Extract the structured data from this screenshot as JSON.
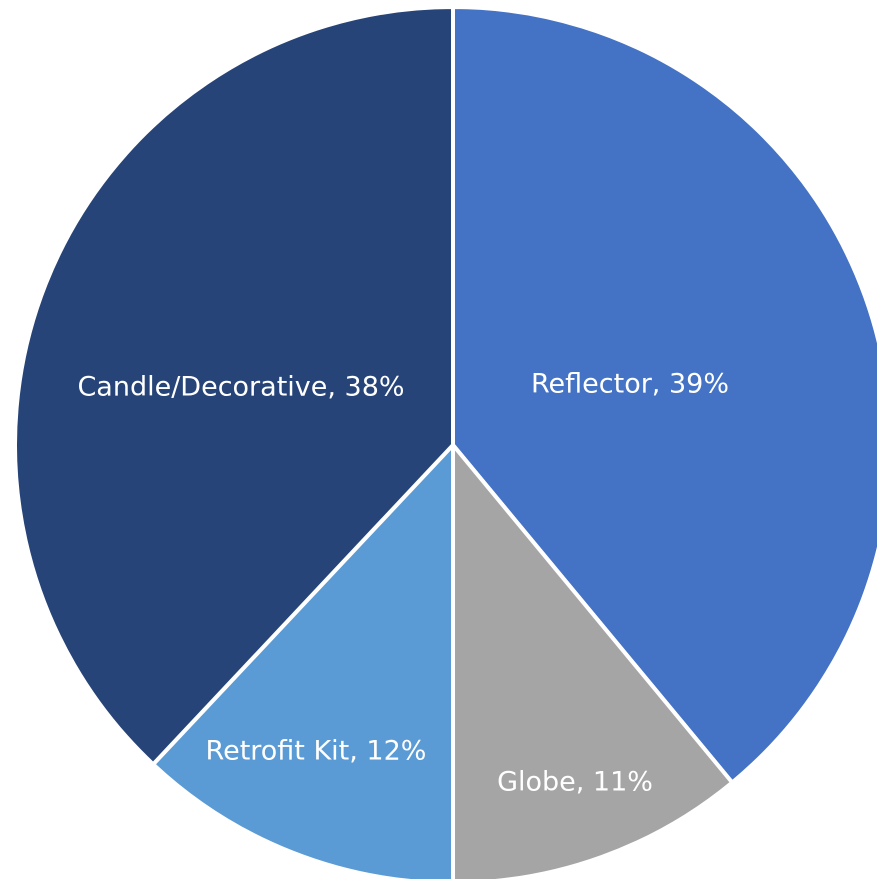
{
  "chart_data": {
    "type": "pie",
    "title": "",
    "start_angle_deg": 0,
    "direction": "clockwise",
    "legend": "none",
    "slices": [
      {
        "label": "Reflector",
        "value": 39,
        "color": "#4472C4",
        "data_label": "Reflector, 39%"
      },
      {
        "label": "Globe",
        "value": 11,
        "color": "#A5A5A5",
        "data_label": "Globe, 11%"
      },
      {
        "label": "Retrofit Kit",
        "value": 12,
        "color": "#5B9BD5",
        "data_label": "Retrofit Kit, 12%"
      },
      {
        "label": "Candle/Decorative",
        "value": 38,
        "color": "#264478",
        "data_label": "Candle/Decorative, 38%"
      }
    ]
  }
}
